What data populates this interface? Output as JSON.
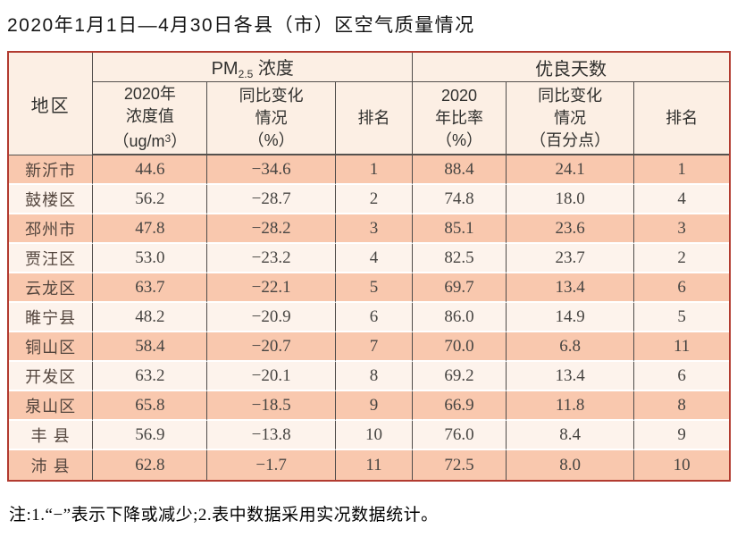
{
  "title": "2020年1月1日—4月30日各县（市）区空气质量情况",
  "colors": {
    "outer_border": "#b23b30",
    "grid_line": "#55514e",
    "header_bg": "#fcefe4",
    "row_salmon": "#f9c8ae",
    "row_light": "#fdf3ec",
    "row_separator": "#ffffff"
  },
  "table": {
    "header": {
      "region": "地区",
      "pm_group": {
        "prefix": "PM",
        "sub": "2.5",
        "suffix": " 浓度"
      },
      "good_group": "优良天数",
      "pm_value": {
        "l1": "2020年",
        "l2": "浓度值",
        "l3a": "（ug/m",
        "sup": "3",
        "l3b": "）"
      },
      "pm_change": {
        "l1": "同比变化",
        "l2": "情况",
        "l3": "（%）"
      },
      "pm_rank": "排名",
      "good_rate": {
        "l1": "2020",
        "l2": "年比率",
        "l3": "（%）"
      },
      "good_change": {
        "l1": "同比变化",
        "l2": "情况",
        "l3": "（百分点）"
      },
      "good_rank": "排名"
    },
    "rows": [
      {
        "region": "新沂市",
        "pm_value": "44.6",
        "pm_change": "−34.6",
        "pm_rank": "1",
        "good_rate": "88.4",
        "good_change": "24.1",
        "good_rank": "1"
      },
      {
        "region": "鼓楼区",
        "pm_value": "56.2",
        "pm_change": "−28.7",
        "pm_rank": "2",
        "good_rate": "74.8",
        "good_change": "18.0",
        "good_rank": "4"
      },
      {
        "region": "邳州市",
        "pm_value": "47.8",
        "pm_change": "−28.2",
        "pm_rank": "3",
        "good_rate": "85.1",
        "good_change": "23.6",
        "good_rank": "3"
      },
      {
        "region": "贾汪区",
        "pm_value": "53.0",
        "pm_change": "−23.2",
        "pm_rank": "4",
        "good_rate": "82.5",
        "good_change": "23.7",
        "good_rank": "2"
      },
      {
        "region": "云龙区",
        "pm_value": "63.7",
        "pm_change": "−22.1",
        "pm_rank": "5",
        "good_rate": "69.7",
        "good_change": "13.4",
        "good_rank": "6"
      },
      {
        "region": "睢宁县",
        "pm_value": "48.2",
        "pm_change": "−20.9",
        "pm_rank": "6",
        "good_rate": "86.0",
        "good_change": "14.9",
        "good_rank": "5"
      },
      {
        "region": "铜山区",
        "pm_value": "58.4",
        "pm_change": "−20.7",
        "pm_rank": "7",
        "good_rate": "70.0",
        "good_change": "6.8",
        "good_rank": "11"
      },
      {
        "region": "开发区",
        "pm_value": "63.2",
        "pm_change": "−20.1",
        "pm_rank": "8",
        "good_rate": "69.2",
        "good_change": "13.4",
        "good_rank": "6"
      },
      {
        "region": "泉山区",
        "pm_value": "65.8",
        "pm_change": "−18.5",
        "pm_rank": "9",
        "good_rate": "66.9",
        "good_change": "11.8",
        "good_rank": "8"
      },
      {
        "region": "丰 县",
        "pm_value": "56.9",
        "pm_change": "−13.8",
        "pm_rank": "10",
        "good_rate": "76.0",
        "good_change": "8.4",
        "good_rank": "9"
      },
      {
        "region": "沛 县",
        "pm_value": "62.8",
        "pm_change": "−1.7",
        "pm_rank": "11",
        "good_rate": "72.5",
        "good_change": "8.0",
        "good_rank": "10"
      }
    ]
  },
  "footnote": "注:1.“−”表示下降或减少;2.表中数据采用实况数据统计。"
}
